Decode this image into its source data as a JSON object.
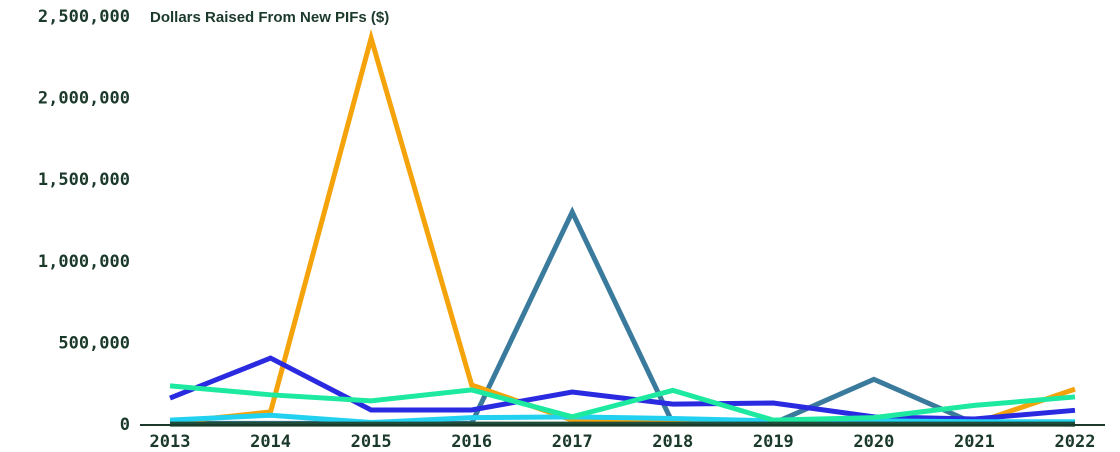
{
  "chart_data": {
    "type": "line",
    "title": "Dollars Raised From New PIFs ($)",
    "categories": [
      "2013",
      "2014",
      "2015",
      "2016",
      "2017",
      "2018",
      "2019",
      "2020",
      "2021",
      "2022"
    ],
    "series": [
      {
        "color": "#3a7a9c",
        "values": [
          10000,
          10000,
          10000,
          10000,
          1305000,
          10000,
          10000,
          280000,
          10000,
          5000
        ]
      },
      {
        "color": "#f5a30a",
        "values": [
          15000,
          80000,
          2370000,
          245000,
          30000,
          10000,
          10000,
          10000,
          10000,
          220000
        ]
      },
      {
        "color": "#2a2ae0",
        "values": [
          165000,
          410000,
          92000,
          92000,
          202000,
          128000,
          135000,
          50000,
          37000,
          90000
        ]
      },
      {
        "color": "#22d0f0",
        "values": [
          30000,
          60000,
          15000,
          45000,
          50000,
          40000,
          25000,
          25000,
          20000,
          20000
        ]
      },
      {
        "color": "#1de9a0",
        "values": [
          240000,
          185000,
          148000,
          215000,
          50000,
          212000,
          30000,
          45000,
          120000,
          172000
        ]
      },
      {
        "color": "#1f4d3a",
        "values": [
          5000,
          5000,
          5000,
          5000,
          5000,
          5000,
          5000,
          5000,
          5000,
          5000
        ]
      }
    ],
    "ylim": [
      0,
      2500000
    ],
    "yticks": [
      0,
      {
        "value": 500000,
        "label": "500,000"
      },
      {
        "value": 1000000,
        "label": "1,000,000"
      },
      {
        "value": 1500000,
        "label": "1,500,000"
      },
      {
        "value": 2000000,
        "label": "2,000,000"
      },
      {
        "value": 2500000,
        "label": "2,500,000"
      }
    ]
  }
}
